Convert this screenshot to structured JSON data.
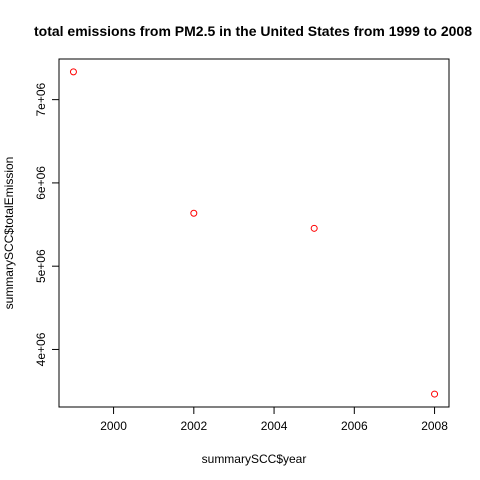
{
  "chart_data": {
    "type": "scatter",
    "title": "total emissions from PM2.5 in the United States from 1999 to 2008",
    "xlabel": "summarySCC$year",
    "ylabel": "summarySCC$totalEmission",
    "x": [
      1999,
      2002,
      2005,
      2008
    ],
    "y": [
      7332967,
      5635780,
      5454703,
      3464206
    ],
    "xlim": [
      1998.64,
      2008.36
    ],
    "ylim": [
      3309000,
      7488000
    ],
    "x_ticks": [
      2000,
      2002,
      2004,
      2006,
      2008
    ],
    "x_tick_labels": [
      "2000",
      "2002",
      "2004",
      "2006",
      "2008"
    ],
    "y_ticks": [
      4000000,
      5000000,
      6000000,
      7000000
    ],
    "y_tick_labels": [
      "4e+06",
      "5e+06",
      "6e+06",
      "7e+06"
    ],
    "point_color": "#ff0000",
    "grid": false,
    "legend": "none"
  }
}
